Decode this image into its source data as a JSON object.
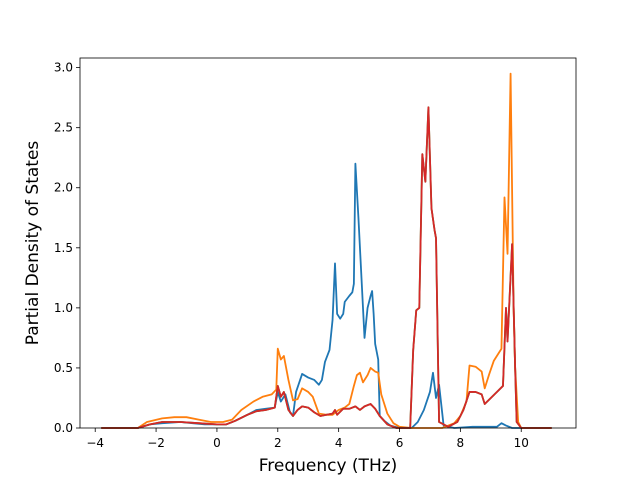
{
  "chart_data": {
    "type": "line",
    "xlabel": "Frequency (THz)",
    "ylabel": "Partial Density of States",
    "xlim": [
      -4.5,
      11.8
    ],
    "ylim": [
      0,
      3.08
    ],
    "xticks": [
      -4,
      -2,
      0,
      2,
      4,
      6,
      8,
      10
    ],
    "yticks": [
      0.0,
      0.5,
      1.0,
      1.5,
      2.0,
      2.5,
      3.0
    ],
    "xtick_labels": [
      "−4",
      "−2",
      "0",
      "2",
      "4",
      "6",
      "8",
      "10"
    ],
    "ytick_labels": [
      "0.0",
      "0.5",
      "1.0",
      "1.5",
      "2.0",
      "2.5",
      "3.0"
    ],
    "grid": false,
    "legend": "none",
    "series": [
      {
        "color": "#1f77b4",
        "points": [
          [
            -3.8,
            0
          ],
          [
            -2.6,
            0
          ],
          [
            -2.2,
            0.03
          ],
          [
            -1.8,
            0.04
          ],
          [
            -1.2,
            0.05
          ],
          [
            -0.8,
            0.04
          ],
          [
            -0.4,
            0.03
          ],
          [
            0,
            0.03
          ],
          [
            0.3,
            0.03
          ],
          [
            0.6,
            0.06
          ],
          [
            1.0,
            0.11
          ],
          [
            1.3,
            0.15
          ],
          [
            1.6,
            0.16
          ],
          [
            1.9,
            0.17
          ],
          [
            2.0,
            0.3
          ],
          [
            2.1,
            0.22
          ],
          [
            2.25,
            0.28
          ],
          [
            2.4,
            0.13
          ],
          [
            2.5,
            0.1
          ],
          [
            2.6,
            0.3
          ],
          [
            2.8,
            0.45
          ],
          [
            3.0,
            0.42
          ],
          [
            3.2,
            0.4
          ],
          [
            3.35,
            0.36
          ],
          [
            3.45,
            0.4
          ],
          [
            3.55,
            0.55
          ],
          [
            3.7,
            0.65
          ],
          [
            3.8,
            0.9
          ],
          [
            3.88,
            1.37
          ],
          [
            3.95,
            0.95
          ],
          [
            4.05,
            0.91
          ],
          [
            4.15,
            0.95
          ],
          [
            4.2,
            1.05
          ],
          [
            4.35,
            1.1
          ],
          [
            4.45,
            1.13
          ],
          [
            4.5,
            1.2
          ],
          [
            4.55,
            2.2
          ],
          [
            4.65,
            1.75
          ],
          [
            4.75,
            1.25
          ],
          [
            4.85,
            0.75
          ],
          [
            4.95,
            1.0
          ],
          [
            5.05,
            1.1
          ],
          [
            5.1,
            1.14
          ],
          [
            5.15,
            0.95
          ],
          [
            5.2,
            0.7
          ],
          [
            5.3,
            0.57
          ],
          [
            5.35,
            0.1
          ],
          [
            5.5,
            0.06
          ],
          [
            5.7,
            0.02
          ],
          [
            6.0,
            0
          ],
          [
            6.4,
            0
          ],
          [
            6.6,
            0.05
          ],
          [
            6.8,
            0.15
          ],
          [
            7.0,
            0.3
          ],
          [
            7.1,
            0.46
          ],
          [
            7.2,
            0.25
          ],
          [
            7.3,
            0.36
          ],
          [
            7.45,
            0.02
          ],
          [
            7.8,
            0
          ],
          [
            8.4,
            0.01
          ],
          [
            9.2,
            0.01
          ],
          [
            9.35,
            0.04
          ],
          [
            9.5,
            0.02
          ],
          [
            9.7,
            0
          ],
          [
            10.5,
            0
          ],
          [
            11.0,
            0
          ]
        ]
      },
      {
        "color": "#ff7f0e",
        "points": [
          [
            -3.8,
            0
          ],
          [
            -2.6,
            0
          ],
          [
            -2.3,
            0.05
          ],
          [
            -1.8,
            0.08
          ],
          [
            -1.4,
            0.09
          ],
          [
            -1.0,
            0.09
          ],
          [
            -0.6,
            0.07
          ],
          [
            -0.2,
            0.05
          ],
          [
            0.2,
            0.05
          ],
          [
            0.5,
            0.07
          ],
          [
            0.8,
            0.15
          ],
          [
            1.2,
            0.22
          ],
          [
            1.5,
            0.26
          ],
          [
            1.8,
            0.28
          ],
          [
            1.95,
            0.32
          ],
          [
            2.0,
            0.66
          ],
          [
            2.1,
            0.57
          ],
          [
            2.2,
            0.6
          ],
          [
            2.35,
            0.4
          ],
          [
            2.5,
            0.23
          ],
          [
            2.65,
            0.24
          ],
          [
            2.8,
            0.33
          ],
          [
            3.0,
            0.3
          ],
          [
            3.15,
            0.26
          ],
          [
            3.35,
            0.12
          ],
          [
            3.6,
            0.11
          ],
          [
            3.8,
            0.11
          ],
          [
            4.0,
            0.15
          ],
          [
            4.2,
            0.17
          ],
          [
            4.35,
            0.2
          ],
          [
            4.5,
            0.35
          ],
          [
            4.6,
            0.44
          ],
          [
            4.7,
            0.46
          ],
          [
            4.8,
            0.38
          ],
          [
            4.95,
            0.44
          ],
          [
            5.05,
            0.5
          ],
          [
            5.2,
            0.47
          ],
          [
            5.3,
            0.46
          ],
          [
            5.4,
            0.28
          ],
          [
            5.6,
            0.12
          ],
          [
            5.8,
            0.04
          ],
          [
            6.0,
            0.01
          ],
          [
            6.4,
            0
          ],
          [
            7.4,
            0
          ],
          [
            7.8,
            0.04
          ],
          [
            8.0,
            0.1
          ],
          [
            8.2,
            0.22
          ],
          [
            8.3,
            0.52
          ],
          [
            8.5,
            0.51
          ],
          [
            8.7,
            0.47
          ],
          [
            8.8,
            0.33
          ],
          [
            8.95,
            0.45
          ],
          [
            9.1,
            0.56
          ],
          [
            9.35,
            0.66
          ],
          [
            9.45,
            1.92
          ],
          [
            9.55,
            1.45
          ],
          [
            9.65,
            2.95
          ],
          [
            9.75,
            1.0
          ],
          [
            9.8,
            0.5
          ],
          [
            9.9,
            0.05
          ],
          [
            10.0,
            0
          ],
          [
            11.0,
            0
          ]
        ]
      },
      {
        "color": "#2ca02c",
        "points": [
          [
            -3.8,
            0
          ],
          [
            -2.6,
            0
          ],
          [
            -2.2,
            0.03
          ],
          [
            -1.8,
            0.05
          ],
          [
            -1.2,
            0.05
          ],
          [
            -0.6,
            0.04
          ],
          [
            0,
            0.03
          ],
          [
            0.3,
            0.03
          ],
          [
            0.6,
            0.06
          ],
          [
            1.0,
            0.11
          ],
          [
            1.3,
            0.14
          ],
          [
            1.6,
            0.15
          ],
          [
            1.9,
            0.17
          ],
          [
            2.0,
            0.35
          ],
          [
            2.1,
            0.26
          ],
          [
            2.2,
            0.3
          ],
          [
            2.35,
            0.15
          ],
          [
            2.5,
            0.1
          ],
          [
            2.65,
            0.15
          ],
          [
            2.8,
            0.18
          ],
          [
            3.0,
            0.17
          ],
          [
            3.2,
            0.13
          ],
          [
            3.4,
            0.1
          ],
          [
            3.6,
            0.11
          ],
          [
            3.8,
            0.12
          ],
          [
            3.88,
            0.15
          ],
          [
            3.95,
            0.11
          ],
          [
            4.15,
            0.16
          ],
          [
            4.35,
            0.16
          ],
          [
            4.55,
            0.18
          ],
          [
            4.7,
            0.15
          ],
          [
            4.85,
            0.18
          ],
          [
            5.05,
            0.2
          ],
          [
            5.2,
            0.16
          ],
          [
            5.35,
            0.1
          ],
          [
            5.6,
            0.03
          ],
          [
            5.9,
            0
          ],
          [
            6.35,
            0
          ],
          [
            6.45,
            0.65
          ],
          [
            6.55,
            0.98
          ],
          [
            6.65,
            1.0
          ],
          [
            6.75,
            2.28
          ],
          [
            6.85,
            2.05
          ],
          [
            6.95,
            2.67
          ],
          [
            7.05,
            1.83
          ],
          [
            7.15,
            1.65
          ],
          [
            7.2,
            1.58
          ],
          [
            7.3,
            0.05
          ],
          [
            7.6,
            0.01
          ],
          [
            7.9,
            0.05
          ],
          [
            8.1,
            0.15
          ],
          [
            8.3,
            0.3
          ],
          [
            8.5,
            0.3
          ],
          [
            8.7,
            0.28
          ],
          [
            8.8,
            0.2
          ],
          [
            9.0,
            0.25
          ],
          [
            9.2,
            0.3
          ],
          [
            9.4,
            0.35
          ],
          [
            9.5,
            1.0
          ],
          [
            9.55,
            0.72
          ],
          [
            9.7,
            1.53
          ],
          [
            9.8,
            0.5
          ],
          [
            9.85,
            0.05
          ],
          [
            10.0,
            0
          ],
          [
            11.0,
            0
          ]
        ]
      },
      {
        "color": "#d62728",
        "points": [
          [
            -3.8,
            0
          ],
          [
            -2.6,
            0
          ],
          [
            -2.2,
            0.03
          ],
          [
            -1.8,
            0.05
          ],
          [
            -1.2,
            0.05
          ],
          [
            -0.6,
            0.04
          ],
          [
            0,
            0.03
          ],
          [
            0.3,
            0.03
          ],
          [
            0.6,
            0.06
          ],
          [
            1.0,
            0.11
          ],
          [
            1.3,
            0.14
          ],
          [
            1.6,
            0.15
          ],
          [
            1.9,
            0.17
          ],
          [
            2.0,
            0.35
          ],
          [
            2.1,
            0.26
          ],
          [
            2.2,
            0.3
          ],
          [
            2.35,
            0.15
          ],
          [
            2.5,
            0.1
          ],
          [
            2.65,
            0.15
          ],
          [
            2.8,
            0.18
          ],
          [
            3.0,
            0.17
          ],
          [
            3.2,
            0.13
          ],
          [
            3.4,
            0.1
          ],
          [
            3.6,
            0.11
          ],
          [
            3.8,
            0.12
          ],
          [
            3.88,
            0.15
          ],
          [
            3.95,
            0.11
          ],
          [
            4.15,
            0.16
          ],
          [
            4.35,
            0.16
          ],
          [
            4.55,
            0.18
          ],
          [
            4.7,
            0.15
          ],
          [
            4.85,
            0.18
          ],
          [
            5.05,
            0.2
          ],
          [
            5.2,
            0.16
          ],
          [
            5.35,
            0.1
          ],
          [
            5.6,
            0.03
          ],
          [
            5.9,
            0
          ],
          [
            6.35,
            0
          ],
          [
            6.45,
            0.65
          ],
          [
            6.55,
            0.98
          ],
          [
            6.65,
            1.0
          ],
          [
            6.75,
            2.28
          ],
          [
            6.85,
            2.05
          ],
          [
            6.95,
            2.67
          ],
          [
            7.05,
            1.83
          ],
          [
            7.15,
            1.65
          ],
          [
            7.2,
            1.58
          ],
          [
            7.3,
            0.05
          ],
          [
            7.6,
            0.01
          ],
          [
            7.9,
            0.05
          ],
          [
            8.1,
            0.15
          ],
          [
            8.3,
            0.3
          ],
          [
            8.5,
            0.3
          ],
          [
            8.7,
            0.28
          ],
          [
            8.8,
            0.2
          ],
          [
            9.0,
            0.25
          ],
          [
            9.2,
            0.3
          ],
          [
            9.4,
            0.35
          ],
          [
            9.5,
            1.0
          ],
          [
            9.55,
            0.72
          ],
          [
            9.7,
            1.53
          ],
          [
            9.8,
            0.5
          ],
          [
            9.85,
            0.05
          ],
          [
            10.0,
            0
          ],
          [
            11.0,
            0
          ]
        ]
      }
    ]
  }
}
